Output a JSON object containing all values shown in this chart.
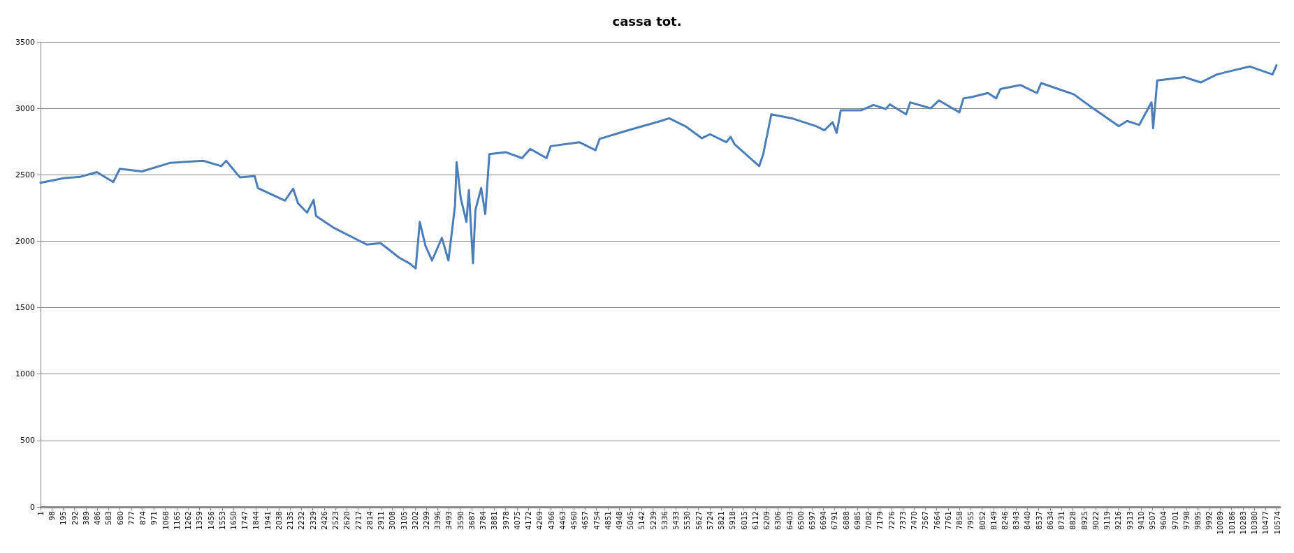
{
  "chart_data": {
    "type": "line",
    "title": "cassa tot.",
    "x": [
      1,
      204,
      343,
      483,
      623,
      679,
      868,
      1112,
      1392,
      1546,
      1588,
      1707,
      1832,
      1860,
      2091,
      2161,
      2203,
      2280,
      2336,
      2357,
      2510,
      2790,
      2909,
      3070,
      3153,
      3209,
      3244,
      3293,
      3349,
      3433,
      3489,
      3545,
      3559,
      3594,
      3643,
      3664,
      3699,
      3720,
      3769,
      3804,
      3839,
      3978,
      4118,
      4188,
      4328,
      4363,
      4607,
      4747,
      4782,
      5027,
      5306,
      5376,
      5516,
      5656,
      5726,
      5866,
      5901,
      5936,
      6146,
      6181,
      6250,
      6425,
      6635,
      6704,
      6774,
      6809,
      6844,
      7019,
      7124,
      7229,
      7264,
      7403,
      7438,
      7613,
      7683,
      7858,
      7893,
      7963,
      8103,
      8173,
      8208,
      8382,
      8522,
      8557,
      8837,
      8977,
      9222,
      9292,
      9396,
      9501,
      9515,
      9550,
      9781,
      9921,
      10061,
      10200,
      10340,
      10536,
      10570
    ],
    "series": [
      {
        "color": "#4a7ebb",
        "values": [
          2440,
          2475,
          2485,
          2520,
          2445,
          2545,
          2525,
          2590,
          2605,
          2565,
          2605,
          2480,
          2490,
          2400,
          2305,
          2395,
          2285,
          2215,
          2310,
          2190,
          2100,
          1975,
          1985,
          1875,
          1835,
          1795,
          2145,
          1965,
          1855,
          2025,
          1855,
          2265,
          2595,
          2325,
          2145,
          2385,
          1835,
          2235,
          2400,
          2205,
          2655,
          2670,
          2625,
          2695,
          2625,
          2715,
          2745,
          2685,
          2770,
          2835,
          2905,
          2925,
          2865,
          2775,
          2805,
          2745,
          2785,
          2730,
          2565,
          2655,
          2955,
          2925,
          2865,
          2835,
          2895,
          2815,
          2985,
          2985,
          3025,
          2995,
          3030,
          2955,
          3045,
          3000,
          3060,
          2970,
          3075,
          3085,
          3115,
          3075,
          3145,
          3175,
          3115,
          3190,
          3105,
          3015,
          2865,
          2905,
          2875,
          3045,
          2850,
          3210,
          3235,
          3195,
          3255,
          3285,
          3315,
          3255,
          3325
        ]
      }
    ],
    "xlim": [
      1,
      10600
    ],
    "xticks": [
      1,
      98,
      195,
      292,
      389,
      486,
      583,
      680,
      777,
      874,
      971,
      1068,
      1165,
      1262,
      1359,
      1456,
      1553,
      1650,
      1747,
      1844,
      1941,
      2038,
      2135,
      2232,
      2329,
      2426,
      2523,
      2620,
      2717,
      2814,
      2911,
      3008,
      3105,
      3202,
      3299,
      3396,
      3493,
      3590,
      3687,
      3784,
      3881,
      3978,
      4075,
      4172,
      4269,
      4366,
      4463,
      4560,
      4657,
      4754,
      4851,
      4948,
      5045,
      5142,
      5239,
      5336,
      5433,
      5530,
      5627,
      5724,
      5821,
      5918,
      6015,
      6112,
      6209,
      6306,
      6403,
      6500,
      6597,
      6694,
      6791,
      6888,
      6985,
      7082,
      7179,
      7276,
      7373,
      7470,
      7567,
      7664,
      7761,
      7858,
      7955,
      8052,
      8149,
      8246,
      8343,
      8440,
      8537,
      8634,
      8731,
      8828,
      8925,
      9022,
      9119,
      9216,
      9313,
      9410,
      9507,
      9604,
      9701,
      9798,
      9895,
      9992,
      10089,
      10186,
      10283,
      10380,
      10477,
      10574
    ],
    "ylim": [
      0,
      3500
    ],
    "yticks": [
      0,
      500,
      1000,
      1500,
      2000,
      2500,
      3000,
      3500
    ],
    "grid": "y",
    "marker": "none",
    "line_style": "solid"
  }
}
